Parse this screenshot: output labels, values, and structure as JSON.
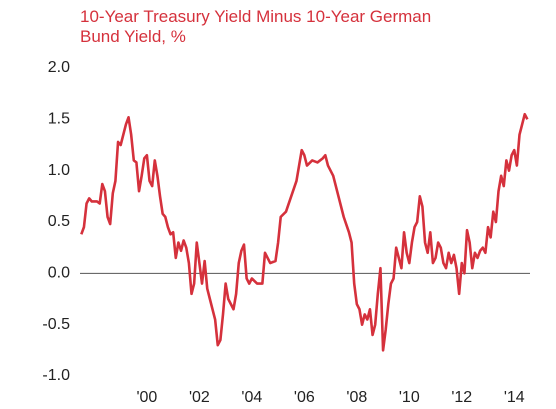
{
  "chart_data": {
    "type": "line",
    "title": [
      "10-Year Treasury Yield Minus 10-Year German",
      "Bund Yield, %"
    ],
    "color": "#d5313c",
    "xlim": [
      1997.45,
      2014.6
    ],
    "ylim": [
      -1,
      2
    ],
    "xticks": [
      {
        "value": 2000,
        "label": "'00"
      },
      {
        "value": 2002,
        "label": "'02"
      },
      {
        "value": 2004,
        "label": "'04"
      },
      {
        "value": 2006,
        "label": "'06"
      },
      {
        "value": 2008,
        "label": "'08"
      },
      {
        "value": 2010,
        "label": "'10"
      },
      {
        "value": 2012,
        "label": "'12"
      },
      {
        "value": 2014,
        "label": "'14"
      }
    ],
    "yticks": [
      {
        "value": 2,
        "label": "2.0"
      },
      1.5,
      {
        "value": 1,
        "label": "1.0"
      },
      0.5,
      {
        "value": 0,
        "label": "0.0"
      },
      -0.5,
      {
        "value": -1,
        "label": "-1.0"
      }
    ],
    "x": [
      1997.5,
      1997.6,
      1997.7,
      1997.8,
      1997.9,
      1998.1,
      1998.2,
      1998.3,
      1998.4,
      1998.5,
      1998.6,
      1998.7,
      1998.8,
      1998.9,
      1999.0,
      1999.2,
      1999.3,
      1999.4,
      1999.5,
      1999.6,
      1999.7,
      1999.8,
      1999.9,
      2000.0,
      2000.1,
      2000.2,
      2000.3,
      2000.4,
      2000.5,
      2000.6,
      2000.7,
      2000.8,
      2000.9,
      2001.0,
      2001.1,
      2001.2,
      2001.3,
      2001.4,
      2001.5,
      2001.6,
      2001.7,
      2001.8,
      2001.9,
      2002.0,
      2002.1,
      2002.2,
      2002.3,
      2002.4,
      2002.5,
      2002.6,
      2002.7,
      2002.8,
      2002.9,
      2003.0,
      2003.1,
      2003.2,
      2003.3,
      2003.4,
      2003.5,
      2003.6,
      2003.7,
      2003.8,
      2003.9,
      2004.0,
      2004.2,
      2004.4,
      2004.5,
      2004.6,
      2004.7,
      2004.9,
      2005.0,
      2005.1,
      2005.3,
      2005.5,
      2005.7,
      2005.8,
      2005.9,
      2006.0,
      2006.1,
      2006.3,
      2006.5,
      2006.7,
      2006.8,
      2006.9,
      2007.1,
      2007.3,
      2007.5,
      2007.7,
      2007.8,
      2007.9,
      2008.0,
      2008.1,
      2008.2,
      2008.3,
      2008.4,
      2008.5,
      2008.6,
      2008.7,
      2008.8,
      2008.9,
      2009.0,
      2009.1,
      2009.2,
      2009.3,
      2009.4,
      2009.5,
      2009.6,
      2009.7,
      2009.8,
      2009.9,
      2010.0,
      2010.1,
      2010.2,
      2010.3,
      2010.4,
      2010.5,
      2010.6,
      2010.7,
      2010.8,
      2010.9,
      2011.0,
      2011.1,
      2011.2,
      2011.3,
      2011.4,
      2011.5,
      2011.6,
      2011.7,
      2011.8,
      2011.9,
      2012.0,
      2012.1,
      2012.2,
      2012.3,
      2012.4,
      2012.5,
      2012.6,
      2012.7,
      2012.8,
      2012.9,
      2013.0,
      2013.1,
      2013.2,
      2013.3,
      2013.4,
      2013.5,
      2013.6,
      2013.7,
      2013.8,
      2013.9,
      2014.0,
      2014.1,
      2014.2,
      2014.3,
      2014.4,
      2014.5
    ],
    "values": [
      0.38,
      0.45,
      0.68,
      0.73,
      0.7,
      0.7,
      0.68,
      0.87,
      0.8,
      0.55,
      0.48,
      0.78,
      0.9,
      1.28,
      1.25,
      1.45,
      1.52,
      1.35,
      1.1,
      1.08,
      0.8,
      0.95,
      1.12,
      1.15,
      0.9,
      0.85,
      1.1,
      0.95,
      0.75,
      0.58,
      0.55,
      0.45,
      0.38,
      0.4,
      0.15,
      0.3,
      0.22,
      0.32,
      0.25,
      0.1,
      -0.2,
      -0.1,
      0.3,
      0.1,
      -0.1,
      0.12,
      -0.15,
      -0.25,
      -0.35,
      -0.45,
      -0.7,
      -0.65,
      -0.4,
      -0.1,
      -0.25,
      -0.3,
      -0.35,
      -0.2,
      0.1,
      0.22,
      0.28,
      -0.05,
      -0.1,
      -0.05,
      -0.1,
      -0.1,
      0.2,
      0.15,
      0.1,
      0.12,
      0.3,
      0.55,
      0.6,
      0.75,
      0.9,
      1.05,
      1.2,
      1.15,
      1.05,
      1.1,
      1.08,
      1.12,
      1.15,
      1.05,
      0.95,
      0.75,
      0.55,
      0.4,
      0.3,
      -0.1,
      -0.3,
      -0.35,
      -0.5,
      -0.4,
      -0.45,
      -0.35,
      -0.6,
      -0.5,
      -0.2,
      0.05,
      -0.75,
      -0.55,
      -0.3,
      -0.1,
      -0.05,
      0.25,
      0.15,
      0.05,
      0.4,
      0.2,
      0.1,
      0.3,
      0.45,
      0.5,
      0.75,
      0.65,
      0.3,
      0.2,
      0.4,
      0.1,
      0.15,
      0.3,
      0.25,
      0.1,
      0.05,
      0.2,
      0.1,
      0.18,
      0.05,
      -0.2,
      0.1,
      0.0,
      0.42,
      0.3,
      0.05,
      0.2,
      0.15,
      0.22,
      0.25,
      0.2,
      0.45,
      0.35,
      0.6,
      0.5,
      0.8,
      0.95,
      0.85,
      1.1,
      1.0,
      1.15,
      1.2,
      1.05,
      1.35,
      1.45,
      1.55,
      1.5
    ]
  }
}
